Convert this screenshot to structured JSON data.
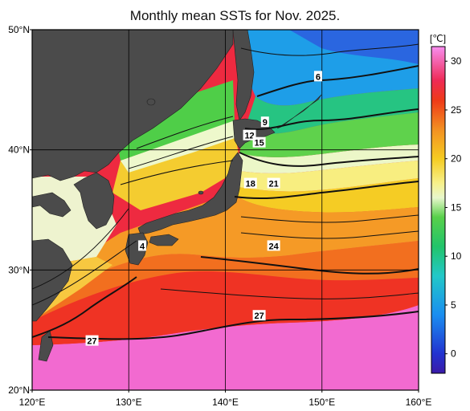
{
  "title": "Monthly mean SSTs for Nov. 2025.",
  "map": {
    "lat_ticks": [
      "50°N",
      "40°N",
      "30°N",
      "20°N"
    ],
    "lon_ticks": [
      "120°E",
      "130°E",
      "140°E",
      "150°E",
      "160°E"
    ],
    "lon_range": [
      120,
      160
    ],
    "lat_range": [
      20,
      50
    ],
    "grid": true,
    "land_color": "#4b4b4b",
    "contour_labels": [
      {
        "text": "6",
        "lon": 149.6,
        "lat": 46.1
      },
      {
        "text": "9",
        "lon": 144.1,
        "lat": 42.3
      },
      {
        "text": "12",
        "lon": 142.5,
        "lat": 41.2
      },
      {
        "text": "15",
        "lon": 143.5,
        "lat": 40.6
      },
      {
        "text": "18",
        "lon": 142.6,
        "lat": 37.2
      },
      {
        "text": "21",
        "lon": 145.0,
        "lat": 37.2
      },
      {
        "text": "24",
        "lon": 145.0,
        "lat": 32.0
      },
      {
        "text": "27",
        "lon": 143.5,
        "lat": 26.2
      },
      {
        "text": "27",
        "lon": 126.2,
        "lat": 24.1
      },
      {
        "text": "4",
        "lon": 131.4,
        "lat": 32.0
      }
    ]
  },
  "colorbar": {
    "unit": "[℃]",
    "ticks": [
      "30",
      "25",
      "20",
      "15",
      "10",
      "5",
      "0"
    ],
    "range": [
      -2,
      31.5
    ],
    "tick_values": [
      30,
      25,
      20,
      15,
      10,
      5,
      0
    ],
    "colors": [
      {
        "t": -2,
        "c": "#3a1aa8"
      },
      {
        "t": 0,
        "c": "#2233d0"
      },
      {
        "t": 4,
        "c": "#1a8ef0"
      },
      {
        "t": 8,
        "c": "#22c8c8"
      },
      {
        "t": 11,
        "c": "#22c46a"
      },
      {
        "t": 14,
        "c": "#58d04a"
      },
      {
        "t": 16,
        "c": "#e8f7cc"
      },
      {
        "t": 17.5,
        "c": "#f7f08a"
      },
      {
        "t": 20,
        "c": "#f5cc22"
      },
      {
        "t": 23,
        "c": "#f39022"
      },
      {
        "t": 26,
        "c": "#ee3a18"
      },
      {
        "t": 28,
        "c": "#ee2a55"
      },
      {
        "t": 31.5,
        "c": "#f88ef0"
      }
    ]
  }
}
